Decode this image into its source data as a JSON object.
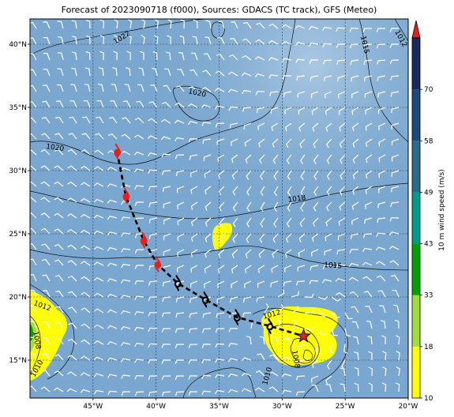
{
  "title": "Forecast of 2023090718 (f000), Sources: GDACS (TC track), GFS (Meteo)",
  "map": {
    "lon_range": [
      -50,
      -20
    ],
    "lat_range": [
      12,
      42
    ],
    "lon_ticks": [
      {
        "value": -45,
        "label": "45°W"
      },
      {
        "value": -40,
        "label": "40°W"
      },
      {
        "value": -35,
        "label": "35°W"
      },
      {
        "value": -30,
        "label": "30°W"
      },
      {
        "value": -25,
        "label": "25°W"
      },
      {
        "value": -20,
        "label": "20°W"
      }
    ],
    "lat_ticks": [
      {
        "value": 15,
        "label": "15°N"
      },
      {
        "value": 20,
        "label": "20°N"
      },
      {
        "value": 25,
        "label": "25°N"
      },
      {
        "value": 30,
        "label": "30°N"
      },
      {
        "value": 35,
        "label": "35°N"
      },
      {
        "value": 40,
        "label": "40°N"
      }
    ],
    "gridlines": true,
    "background_color": "#7aa7cf"
  },
  "isobar_labels": [
    "1022",
    "1015",
    "1012",
    "1020",
    "1020",
    "1018",
    "1015",
    "1012",
    "1012",
    "1008",
    "1010",
    "1008",
    "1010"
  ],
  "track": {
    "points": [
      {
        "lon": -43.1,
        "lat": 31.5,
        "type": "hurricane",
        "color": "#e8201c"
      },
      {
        "lon": -42.4,
        "lat": 28.0,
        "type": "hurricane",
        "color": "#e8201c"
      },
      {
        "lon": -41.0,
        "lat": 24.5,
        "type": "hurricane",
        "color": "#e8201c"
      },
      {
        "lon": -39.9,
        "lat": 22.6,
        "type": "hurricane",
        "color": "#e8201c"
      },
      {
        "lon": -38.3,
        "lat": 21.1,
        "type": "storm",
        "color": "#000000"
      },
      {
        "lon": -36.1,
        "lat": 19.8,
        "type": "storm",
        "color": "#000000"
      },
      {
        "lon": -33.6,
        "lat": 18.4,
        "type": "storm",
        "color": "#000000"
      },
      {
        "lon": -31.0,
        "lat": 17.7,
        "type": "storm",
        "color": "#000000"
      },
      {
        "lon": -28.3,
        "lat": 16.9,
        "type": "current",
        "color": "#e8201c"
      }
    ]
  },
  "colorbar": {
    "label": "10 m wind speed (m/s)",
    "ticks": [
      "10",
      "18",
      "33",
      "43",
      "49",
      "58",
      "70"
    ],
    "colors": [
      "#ffff00",
      "#9fdc3c",
      "#00a000",
      "#009a8a",
      "#2a6a8a",
      "#1d4a7a",
      "#1a2a5a"
    ],
    "extend_color": "#e8201c"
  }
}
